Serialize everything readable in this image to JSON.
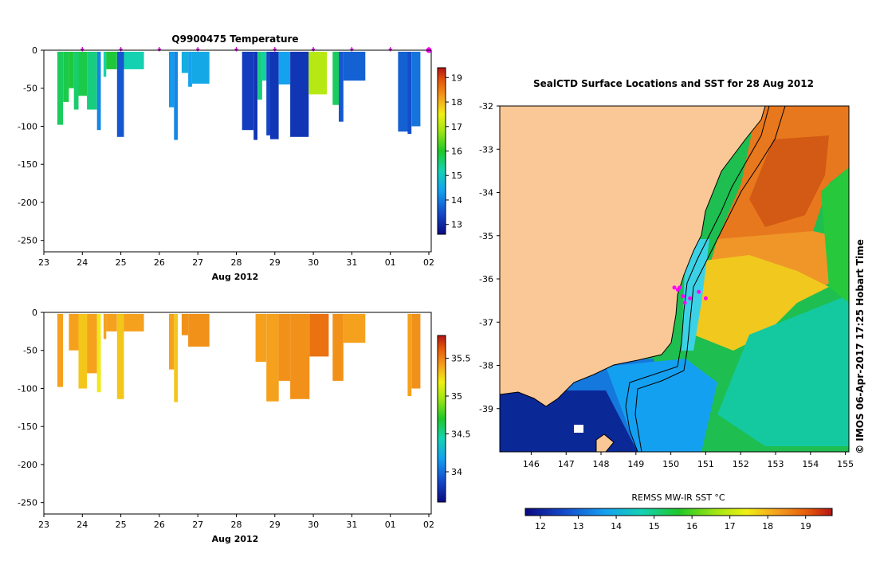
{
  "chart_data": [
    {
      "type": "heatmap",
      "title": "Q9900475  Temperature",
      "ylim": [
        -265,
        0
      ],
      "yticks": [
        0,
        -50,
        -100,
        -150,
        -200,
        -250
      ],
      "xticks": [
        "23",
        "24",
        "25",
        "26",
        "27",
        "28",
        "29",
        "30",
        "31",
        "01",
        "02"
      ],
      "xlabel": "Aug 2012",
      "colorbar": {
        "min": 12.6,
        "max": 19.4,
        "ticks": [
          13,
          14,
          15,
          16,
          17,
          18,
          19
        ]
      },
      "profile_markers": [
        24,
        25,
        26,
        27,
        28,
        29,
        30,
        31,
        32,
        33
      ],
      "profiles": [
        {
          "x0": 23.35,
          "x1": 23.5,
          "depth": -98,
          "value": 15.7
        },
        {
          "x0": 23.5,
          "x1": 23.65,
          "depth": -68,
          "value": 15.8
        },
        {
          "x0": 23.65,
          "x1": 23.78,
          "depth": -50,
          "value": 15.9
        },
        {
          "x0": 23.78,
          "x1": 23.9,
          "depth": -78,
          "value": 15.6
        },
        {
          "x0": 23.9,
          "x1": 24.12,
          "depth": -60,
          "value": 15.8
        },
        {
          "x0": 24.12,
          "x1": 24.38,
          "depth": -78,
          "value": 15.5
        },
        {
          "x0": 24.38,
          "x1": 24.48,
          "depth": -105,
          "value": 14.1
        },
        {
          "x0": 24.55,
          "x1": 24.62,
          "depth": -35,
          "value": 15.2
        },
        {
          "x0": 24.62,
          "x1": 24.9,
          "depth": -25,
          "value": 15.9
        },
        {
          "x0": 24.9,
          "x1": 25.08,
          "depth": -114,
          "value": 13.6
        },
        {
          "x0": 25.08,
          "x1": 25.6,
          "depth": -25,
          "value": 15.2
        },
        {
          "x0": 26.25,
          "x1": 26.38,
          "depth": -75,
          "value": 14.3
        },
        {
          "x0": 26.38,
          "x1": 26.48,
          "depth": -118,
          "value": 14.1
        },
        {
          "x0": 26.58,
          "x1": 26.75,
          "depth": -30,
          "value": 14.6
        },
        {
          "x0": 26.75,
          "x1": 26.85,
          "depth": -48,
          "value": 14.4
        },
        {
          "x0": 26.85,
          "x1": 27.3,
          "depth": -44,
          "value": 14.5
        },
        {
          "x0": 28.15,
          "x1": 28.45,
          "depth": -105,
          "value": 13.3
        },
        {
          "x0": 28.45,
          "x1": 28.55,
          "depth": -118,
          "value": 13.2
        },
        {
          "x0": 28.55,
          "x1": 28.67,
          "depth": -65,
          "value": 15.5
        },
        {
          "x0": 28.67,
          "x1": 28.78,
          "depth": -40,
          "value": 15.3
        },
        {
          "x0": 28.78,
          "x1": 28.88,
          "depth": -112,
          "value": 13.4
        },
        {
          "x0": 28.88,
          "x1": 29.1,
          "depth": -117,
          "value": 13.2
        },
        {
          "x0": 29.1,
          "x1": 29.4,
          "depth": -45,
          "value": 14.4
        },
        {
          "x0": 29.4,
          "x1": 29.88,
          "depth": -114,
          "value": 13.2
        },
        {
          "x0": 29.88,
          "x1": 30.35,
          "depth": -58,
          "value": 17.0
        },
        {
          "x0": 30.5,
          "x1": 30.66,
          "depth": -72,
          "value": 15.7
        },
        {
          "x0": 30.66,
          "x1": 30.78,
          "depth": -94,
          "value": 13.6
        },
        {
          "x0": 30.78,
          "x1": 31.35,
          "depth": -40,
          "value": 13.7
        },
        {
          "x0": 32.2,
          "x1": 32.45,
          "depth": -107,
          "value": 13.7
        },
        {
          "x0": 32.45,
          "x1": 32.55,
          "depth": -110,
          "value": 13.5
        },
        {
          "x0": 32.55,
          "x1": 32.78,
          "depth": -100,
          "value": 13.9
        }
      ]
    },
    {
      "type": "heatmap",
      "title": "",
      "ylim": [
        -265,
        0
      ],
      "yticks": [
        0,
        -50,
        -100,
        -150,
        -200,
        -250
      ],
      "xticks": [
        "23",
        "24",
        "25",
        "26",
        "27",
        "28",
        "29",
        "30",
        "31",
        "01",
        "02"
      ],
      "xlabel": "Aug 2012",
      "colorbar": {
        "min": 33.6,
        "max": 35.8,
        "ticks": [
          34,
          34.5,
          35,
          35.5
        ]
      },
      "profiles": [
        {
          "x0": 23.35,
          "x1": 23.5,
          "depth": -98,
          "value": 35.4
        },
        {
          "x0": 23.65,
          "x1": 23.9,
          "depth": -50,
          "value": 35.4
        },
        {
          "x0": 23.9,
          "x1": 24.12,
          "depth": -100,
          "value": 35.3
        },
        {
          "x0": 24.12,
          "x1": 24.38,
          "depth": -80,
          "value": 35.4
        },
        {
          "x0": 24.38,
          "x1": 24.48,
          "depth": -105,
          "value": 35.2
        },
        {
          "x0": 24.55,
          "x1": 24.62,
          "depth": -35,
          "value": 35.4
        },
        {
          "x0": 24.62,
          "x1": 24.9,
          "depth": -25,
          "value": 35.4
        },
        {
          "x0": 24.9,
          "x1": 25.08,
          "depth": -114,
          "value": 35.3
        },
        {
          "x0": 25.08,
          "x1": 25.6,
          "depth": -25,
          "value": 35.4
        },
        {
          "x0": 26.25,
          "x1": 26.38,
          "depth": -75,
          "value": 35.4
        },
        {
          "x0": 26.38,
          "x1": 26.48,
          "depth": -118,
          "value": 35.3
        },
        {
          "x0": 26.58,
          "x1": 26.75,
          "depth": -30,
          "value": 35.45
        },
        {
          "x0": 26.75,
          "x1": 27.3,
          "depth": -45,
          "value": 35.45
        },
        {
          "x0": 28.5,
          "x1": 28.78,
          "depth": -65,
          "value": 35.4
        },
        {
          "x0": 28.78,
          "x1": 29.1,
          "depth": -117,
          "value": 35.4
        },
        {
          "x0": 29.1,
          "x1": 29.4,
          "depth": -90,
          "value": 35.45
        },
        {
          "x0": 29.4,
          "x1": 29.9,
          "depth": -114,
          "value": 35.45
        },
        {
          "x0": 29.9,
          "x1": 30.4,
          "depth": -58,
          "value": 35.55
        },
        {
          "x0": 30.5,
          "x1": 30.78,
          "depth": -90,
          "value": 35.45
        },
        {
          "x0": 30.78,
          "x1": 31.35,
          "depth": -40,
          "value": 35.4
        },
        {
          "x0": 32.45,
          "x1": 32.55,
          "depth": -110,
          "value": 35.4
        },
        {
          "x0": 32.55,
          "x1": 32.78,
          "depth": -100,
          "value": 35.45
        }
      ]
    },
    {
      "type": "heatmap",
      "title": "SealCTD Surface Locations and SST for 28 Aug 2012",
      "xticks": [
        146,
        147,
        148,
        149,
        150,
        151,
        152,
        153,
        154,
        155
      ],
      "yticks": [
        -32,
        -33,
        -34,
        -35,
        -36,
        -37,
        -38,
        -39
      ],
      "xlim": [
        145.1,
        155.1
      ],
      "ylim": [
        -40.0,
        -32.0
      ],
      "colorbar": {
        "label": "REMSS MW-IR SST °C",
        "min": 11.6,
        "max": 19.7,
        "ticks": [
          12,
          13,
          14,
          15,
          16,
          17,
          18,
          19
        ]
      },
      "credit": "© IMOS 06-Apr-2017 17:25 Hobart Time",
      "seal_locations": [
        {
          "lon": 150.1,
          "lat": -36.2
        },
        {
          "lon": 150.2,
          "lat": -36.25
        },
        {
          "lon": 150.25,
          "lat": -36.2
        },
        {
          "lon": 150.35,
          "lat": -36.4
        },
        {
          "lon": 150.4,
          "lat": -36.55
        },
        {
          "lon": 150.55,
          "lat": -36.45
        },
        {
          "lon": 151.0,
          "lat": -36.45
        },
        {
          "lon": 150.8,
          "lat": -36.3
        }
      ]
    }
  ]
}
